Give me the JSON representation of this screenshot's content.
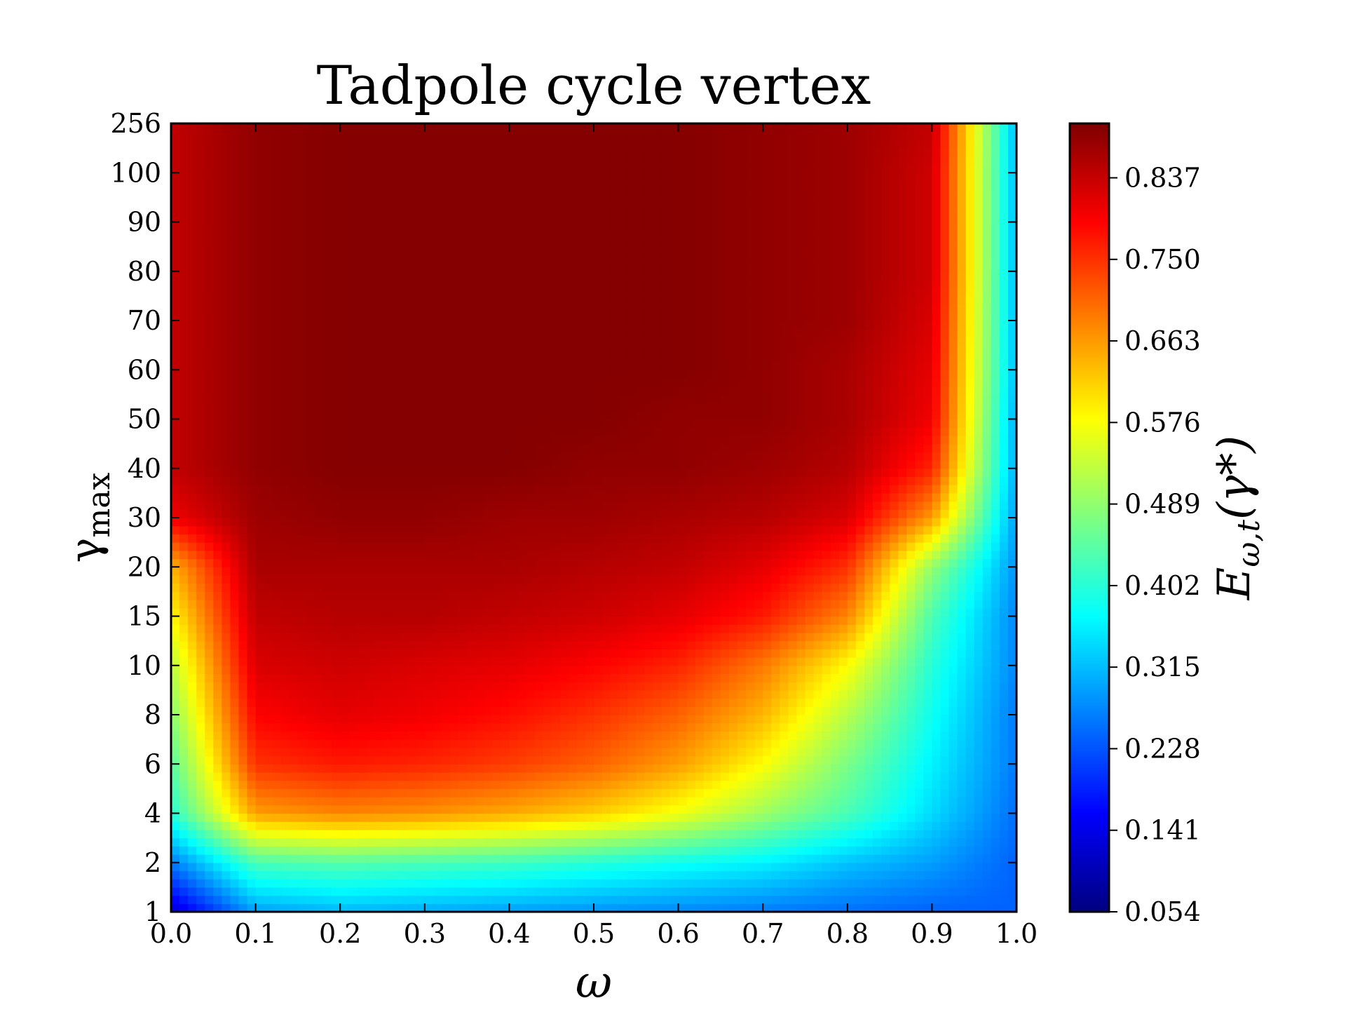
{
  "chart_data": {
    "type": "heatmap",
    "title": "Tadpole cycle vertex",
    "xlabel": "ω",
    "ylabel_main": "γ",
    "ylabel_sub": "max",
    "colorbar_label_main": "E",
    "colorbar_label_sub": "ω,t",
    "colorbar_label_arg": "(γ*)",
    "colormap": "jet",
    "xlim": [
      0.0,
      1.0
    ],
    "x_ticks": [
      "0.0",
      "0.1",
      "0.2",
      "0.3",
      "0.4",
      "0.5",
      "0.6",
      "0.7",
      "0.8",
      "0.9",
      "1.0"
    ],
    "x": [
      0.0,
      0.1,
      0.2,
      0.3,
      0.4,
      0.5,
      0.6,
      0.7,
      0.8,
      0.9,
      1.0
    ],
    "y_scale": "categorical",
    "y_ticks": [
      "1",
      "2",
      "4",
      "6",
      "8",
      "10",
      "15",
      "20",
      "30",
      "40",
      "50",
      "60",
      "70",
      "80",
      "90",
      "100",
      "256"
    ],
    "y": [
      1,
      2,
      4,
      6,
      8,
      10,
      15,
      20,
      30,
      40,
      50,
      60,
      70,
      80,
      90,
      100,
      256
    ],
    "colorbar_range": [
      0.054,
      0.895
    ],
    "colorbar_ticks": [
      "0.054",
      "0.141",
      "0.228",
      "0.315",
      "0.402",
      "0.489",
      "0.576",
      "0.663",
      "0.750",
      "0.837"
    ],
    "z": [
      [
        0.12,
        0.29,
        0.31,
        0.3,
        0.29,
        0.28,
        0.27,
        0.26,
        0.25,
        0.24,
        0.24
      ],
      [
        0.26,
        0.43,
        0.44,
        0.43,
        0.42,
        0.4,
        0.38,
        0.36,
        0.32,
        0.29,
        0.24
      ],
      [
        0.4,
        0.66,
        0.68,
        0.67,
        0.65,
        0.62,
        0.57,
        0.5,
        0.43,
        0.34,
        0.25
      ],
      [
        0.44,
        0.75,
        0.77,
        0.76,
        0.74,
        0.71,
        0.66,
        0.58,
        0.47,
        0.36,
        0.26
      ],
      [
        0.48,
        0.79,
        0.81,
        0.8,
        0.78,
        0.75,
        0.71,
        0.64,
        0.52,
        0.38,
        0.26
      ],
      [
        0.52,
        0.82,
        0.83,
        0.82,
        0.81,
        0.79,
        0.76,
        0.69,
        0.58,
        0.4,
        0.27
      ],
      [
        0.58,
        0.84,
        0.85,
        0.85,
        0.84,
        0.83,
        0.81,
        0.77,
        0.68,
        0.43,
        0.27
      ],
      [
        0.64,
        0.86,
        0.86,
        0.86,
        0.86,
        0.85,
        0.84,
        0.81,
        0.75,
        0.49,
        0.28
      ],
      [
        0.8,
        0.87,
        0.88,
        0.88,
        0.87,
        0.87,
        0.86,
        0.85,
        0.82,
        0.66,
        0.29
      ],
      [
        0.84,
        0.88,
        0.89,
        0.89,
        0.89,
        0.88,
        0.88,
        0.87,
        0.85,
        0.76,
        0.3
      ],
      [
        0.84,
        0.88,
        0.89,
        0.89,
        0.89,
        0.89,
        0.88,
        0.88,
        0.86,
        0.8,
        0.3
      ],
      [
        0.84,
        0.88,
        0.89,
        0.89,
        0.89,
        0.89,
        0.89,
        0.88,
        0.86,
        0.81,
        0.31
      ],
      [
        0.84,
        0.88,
        0.89,
        0.89,
        0.89,
        0.89,
        0.89,
        0.88,
        0.87,
        0.82,
        0.31
      ],
      [
        0.84,
        0.88,
        0.89,
        0.89,
        0.89,
        0.89,
        0.89,
        0.88,
        0.87,
        0.83,
        0.31
      ],
      [
        0.84,
        0.88,
        0.89,
        0.89,
        0.89,
        0.89,
        0.89,
        0.88,
        0.87,
        0.83,
        0.31
      ],
      [
        0.84,
        0.88,
        0.89,
        0.89,
        0.89,
        0.89,
        0.89,
        0.88,
        0.87,
        0.83,
        0.31
      ],
      [
        0.84,
        0.88,
        0.89,
        0.89,
        0.89,
        0.89,
        0.89,
        0.88,
        0.87,
        0.84,
        0.31
      ]
    ],
    "grid": false,
    "ticks_direction": "in"
  }
}
